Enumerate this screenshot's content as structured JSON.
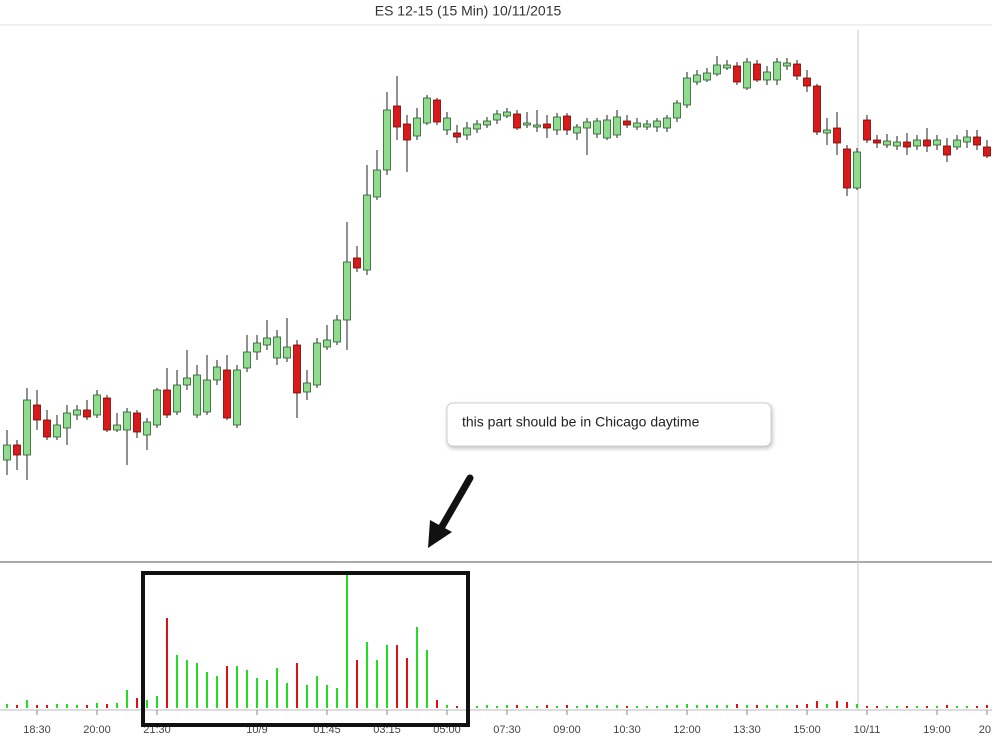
{
  "chart_data": {
    "type": "candlestick",
    "title": "ES 12-15 (15 Min)  10/11/2015",
    "annotation": "this part should be in Chicago daytime",
    "up_color": "#8fdc8f",
    "down_color": "#d91a1a",
    "volume_up_color": "#22dd22",
    "volume_down_color": "#dd1111",
    "ylim": [
      0,
      530
    ],
    "volume_ylim": [
      0,
      135
    ],
    "categories": [
      null,
      null,
      null,
      "18:30",
      null,
      null,
      null,
      null,
      null,
      "20:00",
      null,
      null,
      null,
      null,
      null,
      "21:30",
      null,
      null,
      null,
      null,
      null,
      null,
      null,
      null,
      null,
      "10/9",
      null,
      null,
      null,
      null,
      null,
      null,
      "01:45",
      null,
      null,
      null,
      null,
      null,
      "03:15",
      null,
      null,
      null,
      null,
      null,
      "05:00",
      null,
      null,
      null,
      null,
      null,
      "07:30",
      null,
      null,
      null,
      null,
      null,
      "09:00",
      null,
      null,
      null,
      null,
      null,
      "10:30",
      null,
      null,
      null,
      null,
      null,
      "12:00",
      null,
      null,
      null,
      null,
      null,
      "13:30",
      null,
      null,
      null,
      null,
      null,
      "15:00",
      null,
      null,
      null,
      null,
      null,
      "10/11",
      null,
      null,
      null,
      null,
      null,
      null,
      "19:00",
      null,
      null,
      null,
      null,
      "20"
    ],
    "open": [
      100,
      115,
      105,
      155,
      140,
      123,
      132,
      145,
      150,
      145,
      162,
      130,
      130,
      147,
      125,
      135,
      170,
      148,
      175,
      145,
      148,
      180,
      190,
      135,
      192,
      208,
      215,
      202,
      202,
      215,
      168,
      175,
      213,
      218,
      240,
      302,
      290,
      363,
      390,
      454,
      436,
      424,
      437,
      460,
      430,
      427,
      425,
      431,
      435,
      440,
      444,
      446,
      435,
      433,
      436,
      430,
      444,
      427,
      432,
      426,
      422,
      425,
      439,
      433,
      433,
      433,
      432,
      442,
      455,
      478,
      480,
      486,
      492,
      494,
      472,
      496,
      480,
      480,
      494,
      496,
      482,
      474,
      427,
      432,
      411,
      372,
      440,
      420,
      415,
      414,
      418,
      414,
      420,
      415,
      414,
      413,
      418,
      423,
      413
    ],
    "high": [
      130,
      120,
      172,
      170,
      150,
      145,
      155,
      155,
      160,
      170,
      165,
      147,
      152,
      150,
      142,
      172,
      192,
      190,
      210,
      195,
      205,
      200,
      205,
      195,
      225,
      225,
      240,
      230,
      242,
      220,
      190,
      222,
      235,
      245,
      338,
      314,
      395,
      410,
      468,
      484,
      445,
      452,
      465,
      462,
      448,
      435,
      438,
      440,
      443,
      450,
      452,
      450,
      448,
      450,
      445,
      447,
      447,
      436,
      442,
      442,
      445,
      450,
      445,
      442,
      440,
      442,
      445,
      460,
      488,
      490,
      492,
      504,
      500,
      498,
      502,
      500,
      494,
      502,
      502,
      500,
      490,
      476,
      442,
      448,
      415,
      412,
      445,
      425,
      426,
      424,
      427,
      425,
      432,
      425,
      422,
      425,
      430,
      430,
      420
    ],
    "low": [
      85,
      90,
      80,
      130,
      120,
      120,
      115,
      140,
      140,
      142,
      128,
      128,
      95,
      122,
      110,
      132,
      142,
      145,
      170,
      142,
      145,
      175,
      140,
      132,
      188,
      200,
      210,
      195,
      198,
      142,
      160,
      172,
      210,
      215,
      210,
      288,
      285,
      360,
      385,
      420,
      388,
      420,
      435,
      435,
      425,
      417,
      420,
      427,
      432,
      436,
      442,
      430,
      432,
      428,
      422,
      425,
      425,
      420,
      405,
      422,
      420,
      422,
      432,
      430,
      430,
      428,
      428,
      438,
      452,
      475,
      478,
      484,
      490,
      475,
      470,
      478,
      475,
      475,
      490,
      480,
      468,
      425,
      415,
      405,
      364,
      370,
      417,
      412,
      412,
      410,
      405,
      410,
      408,
      410,
      398,
      410,
      412,
      410,
      402
    ],
    "close": [
      115,
      105,
      160,
      140,
      123,
      135,
      147,
      150,
      143,
      165,
      130,
      135,
      148,
      128,
      138,
      170,
      145,
      175,
      182,
      185,
      180,
      193,
      142,
      190,
      208,
      217,
      222,
      223,
      213,
      167,
      177,
      217,
      220,
      240,
      298,
      292,
      365,
      390,
      450,
      433,
      420,
      442,
      462,
      438,
      442,
      423,
      432,
      436,
      439,
      446,
      448,
      432,
      437,
      435,
      432,
      443,
      430,
      433,
      438,
      439,
      440,
      443,
      435,
      437,
      436,
      439,
      442,
      457,
      482,
      485,
      487,
      495,
      495,
      478,
      498,
      480,
      488,
      498,
      497,
      484,
      474,
      428,
      430,
      417,
      372,
      408,
      420,
      417,
      419,
      418,
      413,
      420,
      414,
      420,
      405,
      420,
      423,
      415,
      404
    ],
    "volume": [
      4,
      3,
      8,
      3,
      3,
      4,
      4,
      3,
      3,
      5,
      4,
      5,
      18,
      10,
      8,
      12,
      90,
      53,
      48,
      45,
      36,
      32,
      42,
      42,
      38,
      30,
      28,
      40,
      25,
      45,
      23,
      32,
      23,
      20,
      133,
      48,
      66,
      48,
      63,
      63,
      50,
      81,
      58,
      8,
      3,
      2,
      3,
      2,
      3,
      2,
      3,
      3,
      2,
      2,
      3,
      2,
      3,
      2,
      3,
      3,
      2,
      3,
      2,
      2,
      2,
      2,
      3,
      3,
      4,
      3,
      3,
      3,
      3,
      4,
      3,
      3,
      3,
      3,
      3,
      3,
      4,
      7,
      4,
      7,
      6,
      4,
      2,
      2,
      2,
      2,
      2,
      2,
      2,
      2,
      3,
      2,
      2,
      2,
      3
    ]
  }
}
